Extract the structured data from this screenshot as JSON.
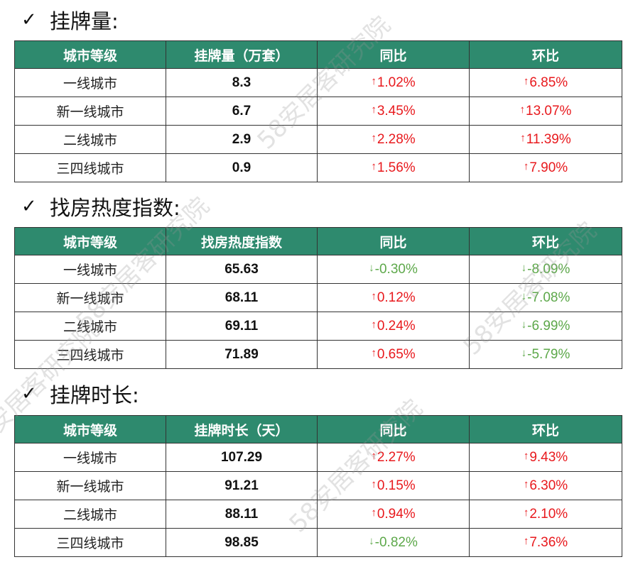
{
  "watermark": "58安居客研究院",
  "colors": {
    "header_bg": "#2e8a6e",
    "up": "#e8191d",
    "down": "#5da84a"
  },
  "sections": [
    {
      "title": "挂牌量:",
      "headers": [
        "城市等级",
        "挂牌量（万套）",
        "同比",
        "环比"
      ],
      "rows": [
        {
          "city": "一线城市",
          "value": "8.3",
          "yoy": {
            "dir": "up",
            "arrow": "↑",
            "text": "1.02%"
          },
          "mom": {
            "dir": "up",
            "arrow": "↑",
            "text": "6.85%"
          }
        },
        {
          "city": "新一线城市",
          "value": "6.7",
          "yoy": {
            "dir": "up",
            "arrow": "↑",
            "text": "3.45%"
          },
          "mom": {
            "dir": "up",
            "arrow": "↑",
            "text": "13.07%"
          }
        },
        {
          "city": "二线城市",
          "value": "2.9",
          "yoy": {
            "dir": "up",
            "arrow": "↑",
            "text": "2.28%"
          },
          "mom": {
            "dir": "up",
            "arrow": "↑",
            "text": "11.39%"
          }
        },
        {
          "city": "三四线城市",
          "value": "0.9",
          "yoy": {
            "dir": "up",
            "arrow": "↑",
            "text": "1.56%"
          },
          "mom": {
            "dir": "up",
            "arrow": "↑",
            "text": "7.90%"
          }
        }
      ]
    },
    {
      "title": "找房热度指数:",
      "headers": [
        "城市等级",
        "找房热度指数",
        "同比",
        "环比"
      ],
      "rows": [
        {
          "city": "一线城市",
          "value": "65.63",
          "yoy": {
            "dir": "down",
            "arrow": "↓",
            "text": "-0.30%"
          },
          "mom": {
            "dir": "down",
            "arrow": "↓",
            "text": "-8.09%"
          }
        },
        {
          "city": "新一线城市",
          "value": "68.11",
          "yoy": {
            "dir": "up",
            "arrow": "↑",
            "text": "0.12%"
          },
          "mom": {
            "dir": "down",
            "arrow": "↓",
            "text": "-7.08%"
          }
        },
        {
          "city": "二线城市",
          "value": "69.11",
          "yoy": {
            "dir": "up",
            "arrow": "↑",
            "text": "0.24%"
          },
          "mom": {
            "dir": "down",
            "arrow": "↓",
            "text": "-6.99%"
          }
        },
        {
          "city": "三四线城市",
          "value": "71.89",
          "yoy": {
            "dir": "up",
            "arrow": "↑",
            "text": "0.65%"
          },
          "mom": {
            "dir": "down",
            "arrow": "↓",
            "text": "-5.79%"
          }
        }
      ]
    },
    {
      "title": "挂牌时长:",
      "headers": [
        "城市等级",
        "挂牌时长（天）",
        "同比",
        "环比"
      ],
      "rows": [
        {
          "city": "一线城市",
          "value": "107.29",
          "yoy": {
            "dir": "up",
            "arrow": "↑",
            "text": "2.27%"
          },
          "mom": {
            "dir": "up",
            "arrow": "↑",
            "text": "9.43%"
          }
        },
        {
          "city": "新一线城市",
          "value": "91.21",
          "yoy": {
            "dir": "up",
            "arrow": "↑",
            "text": "0.15%"
          },
          "mom": {
            "dir": "up",
            "arrow": "↑",
            "text": "6.30%"
          }
        },
        {
          "city": "二线城市",
          "value": "88.11",
          "yoy": {
            "dir": "up",
            "arrow": "↑",
            "text": "0.94%"
          },
          "mom": {
            "dir": "up",
            "arrow": "↑",
            "text": "2.10%"
          }
        },
        {
          "city": "三四线城市",
          "value": "98.85",
          "yoy": {
            "dir": "down",
            "arrow": "↓",
            "text": "-0.82%"
          },
          "mom": {
            "dir": "up",
            "arrow": "↑",
            "text": "7.36%"
          }
        }
      ]
    }
  ]
}
